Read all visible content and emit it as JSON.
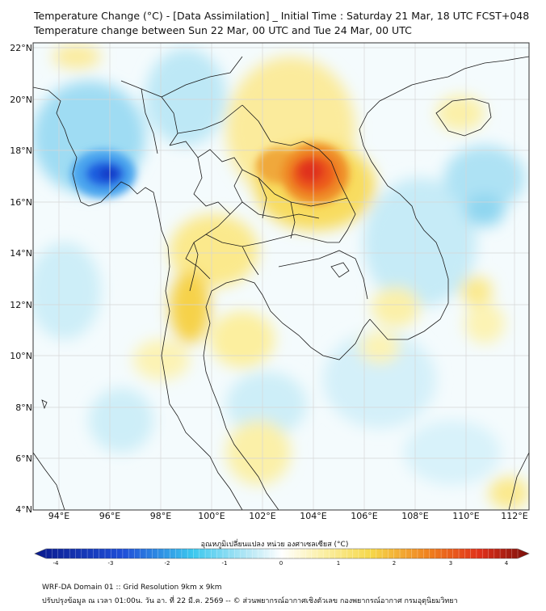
{
  "header": {
    "title_line1": "Temperature Change (°C) - [Data Assimilation] _ Initial Time : Saturday 21 Mar, 18 UTC FCST+048",
    "title_line2": "Temperature change between Sun 22 Mar, 00 UTC and Tue 24 Mar, 00 UTC"
  },
  "axes": {
    "lat_labels": [
      "22°N",
      "20°N",
      "18°N",
      "16°N",
      "14°N",
      "12°N",
      "10°N",
      "8°N",
      "6°N",
      "4°N"
    ],
    "lon_labels": [
      "94°E",
      "96°E",
      "98°E",
      "100°E",
      "102°E",
      "104°E",
      "106°E",
      "108°E",
      "110°E",
      "112°E"
    ]
  },
  "colorbar": {
    "label": "อุณหภูมิเปลี่ยนแปลง หน่วย องศาเซลเซียส (°C)",
    "ticks": [
      "-4",
      "-3",
      "-2",
      "-1",
      "0",
      "1",
      "2",
      "3",
      "4"
    ],
    "colors": {
      "cold_extreme": "#0a1a8c",
      "cold": "#1f6fe0",
      "cool": "#3cc8ee",
      "neutral": "#ffffff",
      "warm": "#f6d84a",
      "hot": "#ef7e1e",
      "hot_extreme": "#7a0f0a"
    }
  },
  "footer": {
    "line1": "WRF-DA Domain 01 :: Grid Resolution 9km x 9km",
    "line2": "ปรับปรุงข้อมูล ณ เวลา 01:00น. วัน อา. ที่ 22 มี.ค. 2569 -- © ส่วนพยากรณ์อากาศเชิงตัวเลข กองพยากรณ์อากาศ กรมอุตุนิยมวิทยา"
  }
}
